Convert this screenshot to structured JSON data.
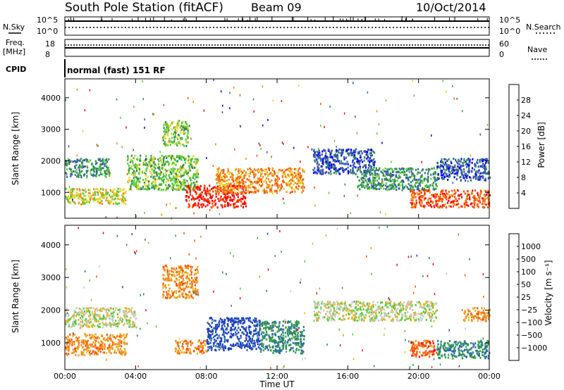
{
  "header": {
    "station": "South Pole Station (fitACF)",
    "beam": "Beam 09",
    "date": "10/Oct/2014"
  },
  "top_panels": {
    "nsky_label": "N.Sky",
    "nsky_ticks": [
      "10^5",
      "10^0"
    ],
    "nsearch_label": "N.Search",
    "nsearch_ticks": [
      "10^5",
      "10^0"
    ],
    "freq_label": "Freq.",
    "freq_unit": "[MHz]",
    "freq_ticks": [
      "18",
      "8"
    ],
    "nave_label": "Nave",
    "nave_ticks": [
      "60",
      "0"
    ],
    "cpid_label": "CPID",
    "cpid_value": "normal (fast) 151 RF"
  },
  "chart_data": [
    {
      "type": "heatmap",
      "ylabel": "Slant Range [km]",
      "ylim": [
        180,
        4600
      ],
      "yticks": [
        "1000",
        "2000",
        "3000",
        "4000"
      ],
      "colorbar_label": "Power [dB]",
      "colorbar_ticks": [
        "4",
        "8",
        "12",
        "16",
        "20",
        "24",
        "28"
      ],
      "colors": [
        "#0000ff",
        "#3f51b5",
        "#2e8b57",
        "#55cc33",
        "#e6d22a",
        "#f08c1e",
        "#ff5000",
        "#ff0000"
      ],
      "bands": [
        {
          "x": [
            0,
            2.5
          ],
          "y": [
            1500,
            2100
          ],
          "level": 2
        },
        {
          "x": [
            0,
            3.5
          ],
          "y": [
            650,
            1150
          ],
          "level": 4
        },
        {
          "x": [
            3.5,
            7.5
          ],
          "y": [
            1100,
            2200
          ],
          "level": 3
        },
        {
          "x": [
            5.5,
            7.0
          ],
          "y": [
            2500,
            3300
          ],
          "level": 3
        },
        {
          "x": [
            6.8,
            10.2
          ],
          "y": [
            550,
            1250
          ],
          "level": 7
        },
        {
          "x": [
            8.5,
            13.5
          ],
          "y": [
            1000,
            1800
          ],
          "level": 5
        },
        {
          "x": [
            14.0,
            17.5
          ],
          "y": [
            1600,
            2400
          ],
          "level": 1
        },
        {
          "x": [
            16.5,
            21.0
          ],
          "y": [
            1100,
            1800
          ],
          "level": 2
        },
        {
          "x": [
            19.5,
            24.0
          ],
          "y": [
            550,
            1100
          ],
          "level": 6
        },
        {
          "x": [
            21.0,
            24.0
          ],
          "y": [
            1400,
            2100
          ],
          "level": 1
        }
      ]
    },
    {
      "type": "heatmap",
      "ylabel": "Slant Range [km]",
      "ylim": [
        180,
        4600
      ],
      "yticks": [
        "1000",
        "2000",
        "3000",
        "4000"
      ],
      "colorbar_label": "Velocity [m s⁻¹]",
      "colorbar_ticks": [
        "1000",
        "500",
        "100",
        "50",
        "25",
        "−25",
        "−100",
        "−500",
        "−1000"
      ],
      "colors": [
        "#1f3fbf",
        "#2a6ab5",
        "#2e8b57",
        "#3aa346",
        "#55cc33",
        "#c8c8c0",
        "#e6b42a",
        "#f08c1e",
        "#ff5000",
        "#ff0000"
      ],
      "bands": [
        {
          "x": [
            0,
            4.0
          ],
          "y": [
            1500,
            2100
          ],
          "level": 5
        },
        {
          "x": [
            0,
            3.5
          ],
          "y": [
            650,
            1300
          ],
          "level": 7
        },
        {
          "x": [
            5.5,
            7.5
          ],
          "y": [
            2400,
            3400
          ],
          "level": 7
        },
        {
          "x": [
            6.2,
            8.0
          ],
          "y": [
            700,
            1100
          ],
          "level": 7
        },
        {
          "x": [
            8.0,
            11.0
          ],
          "y": [
            800,
            1800
          ],
          "level": 0
        },
        {
          "x": [
            11.0,
            13.5
          ],
          "y": [
            700,
            1700
          ],
          "level": 2
        },
        {
          "x": [
            14.0,
            21.0
          ],
          "y": [
            1700,
            2300
          ],
          "level": 5
        },
        {
          "x": [
            19.5,
            21.0
          ],
          "y": [
            600,
            1100
          ],
          "level": 8
        },
        {
          "x": [
            21.0,
            24.0
          ],
          "y": [
            550,
            1100
          ],
          "level": 2
        },
        {
          "x": [
            22.5,
            24.0
          ],
          "y": [
            1700,
            2100
          ],
          "level": 7
        }
      ]
    }
  ],
  "xaxis": {
    "ticks": [
      "00:00",
      "04:00",
      "08:00",
      "12:00",
      "16:00",
      "20:00",
      "00:00"
    ],
    "label": "Time UT",
    "xlim": [
      0,
      24
    ]
  }
}
